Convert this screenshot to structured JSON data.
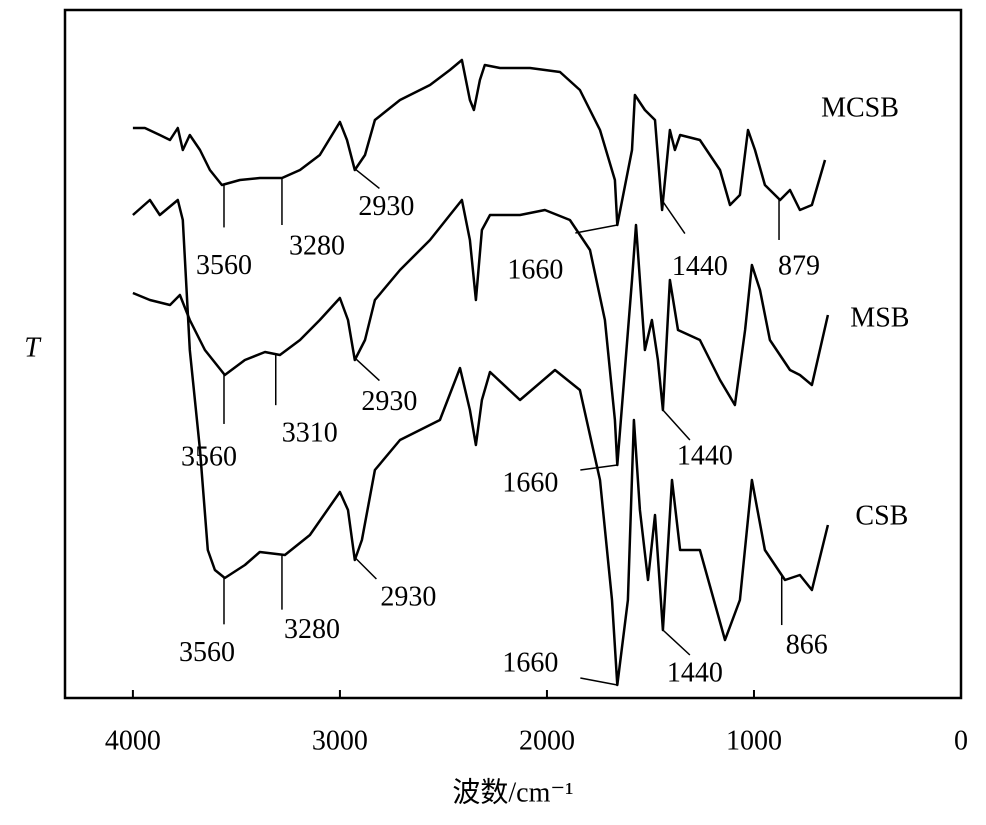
{
  "chart_data": {
    "type": "line",
    "xlabel": "波数/cm⁻¹",
    "ylabel": "T",
    "xlim": [
      4328,
      0
    ],
    "xticks": [
      4000,
      3000,
      2000,
      1000,
      0
    ],
    "ylim": [
      0,
      688
    ],
    "grid": false,
    "series": [
      {
        "name": "MCSB",
        "color": "#000000",
        "x": [
          4000,
          3942,
          3870,
          3821,
          3783,
          3759,
          3725,
          3676,
          3628,
          3570,
          3483,
          3387,
          3280,
          3193,
          3097,
          3000,
          2966,
          2928,
          2879,
          2831,
          2710,
          2565,
          2469,
          2411,
          2372,
          2353,
          2324,
          2300,
          2227,
          2082,
          1937,
          1841,
          1744,
          1672,
          1660,
          1589,
          1575,
          1527,
          1478,
          1444,
          1406,
          1382,
          1357,
          1261,
          1164,
          1116,
          1068,
          1029,
          995,
          947,
          874,
          826,
          778,
          720,
          657
        ],
        "values": [
          570,
          570,
          563,
          558,
          570,
          548,
          563,
          548,
          528,
          513,
          518,
          520,
          520,
          528,
          543,
          576,
          558,
          528,
          543,
          578,
          598,
          613,
          628,
          638,
          598,
          588,
          618,
          633,
          630,
          630,
          626,
          608,
          568,
          518,
          473,
          548,
          603,
          588,
          578,
          488,
          568,
          548,
          563,
          558,
          528,
          493,
          503,
          568,
          548,
          513,
          498,
          508,
          488,
          493,
          538
        ],
        "peaks": [
          3560,
          3280,
          2930,
          1660,
          1440,
          879
        ]
      },
      {
        "name": "MSB",
        "color": "#000000",
        "x": [
          4000,
          3918,
          3821,
          3773,
          3725,
          3652,
          3556,
          3459,
          3362,
          3290,
          3193,
          3097,
          3000,
          2961,
          2928,
          2879,
          2831,
          2710,
          2565,
          2469,
          2411,
          2372,
          2343,
          2314,
          2275,
          2130,
          2010,
          1889,
          1792,
          1720,
          1672,
          1660,
          1589,
          1570,
          1527,
          1493,
          1464,
          1440,
          1406,
          1367,
          1261,
          1164,
          1092,
          1043,
          1010,
          971,
          923,
          826,
          778,
          720,
          643
        ],
        "values": [
          405,
          398,
          393,
          403,
          378,
          348,
          323,
          338,
          346,
          343,
          358,
          378,
          400,
          378,
          338,
          358,
          398,
          428,
          458,
          483,
          498,
          458,
          398,
          468,
          483,
          483,
          488,
          478,
          448,
          378,
          278,
          233,
          418,
          473,
          348,
          378,
          338,
          288,
          418,
          368,
          358,
          318,
          293,
          368,
          433,
          408,
          358,
          328,
          323,
          313,
          383
        ],
        "peaks": [
          3560,
          3310,
          2930,
          1660,
          1440
        ]
      },
      {
        "name": "CSB",
        "color": "#000000",
        "x": [
          4000,
          3918,
          3870,
          3783,
          3759,
          3725,
          3676,
          3638,
          3604,
          3556,
          3459,
          3387,
          3266,
          3145,
          3000,
          2961,
          2928,
          2894,
          2831,
          2710,
          2517,
          2420,
          2372,
          2343,
          2314,
          2275,
          2130,
          1961,
          1841,
          1744,
          1686,
          1660,
          1609,
          1580,
          1551,
          1512,
          1478,
          1440,
          1396,
          1357,
          1261,
          1140,
          1068,
          1010,
          947,
          850,
          778,
          720,
          643
        ],
        "values": [
          483,
          498,
          483,
          498,
          478,
          348,
          248,
          148,
          128,
          120,
          133,
          146,
          143,
          163,
          206,
          188,
          138,
          158,
          228,
          258,
          278,
          330,
          288,
          253,
          298,
          326,
          298,
          328,
          308,
          218,
          98,
          13,
          98,
          278,
          188,
          118,
          183,
          68,
          218,
          148,
          148,
          58,
          98,
          218,
          148,
          118,
          123,
          108,
          173
        ],
        "peaks": [
          3560,
          3280,
          2930,
          1660,
          1440,
          866
        ]
      }
    ]
  }
}
